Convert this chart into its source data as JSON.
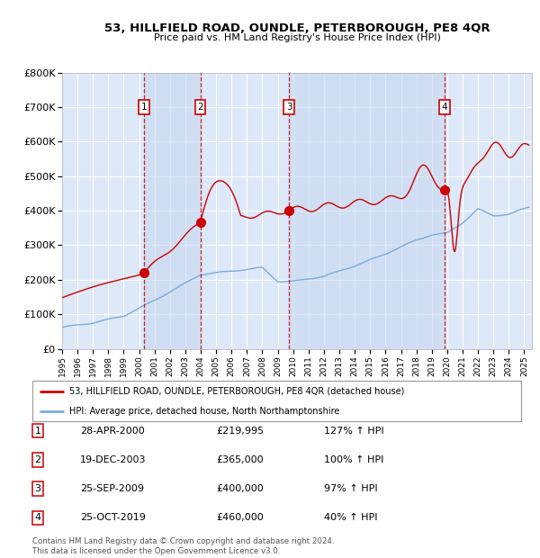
{
  "title": "53, HILLFIELD ROAD, OUNDLE, PETERBOROUGH, PE8 4QR",
  "subtitle": "Price paid vs. HM Land Registry's House Price Index (HPI)",
  "footer": "Contains HM Land Registry data © Crown copyright and database right 2024.\nThis data is licensed under the Open Government Licence v3.0.",
  "legend_red": "53, HILLFIELD ROAD, OUNDLE, PETERBOROUGH, PE8 4QR (detached house)",
  "legend_blue": "HPI: Average price, detached house, North Northamptonshire",
  "sales": [
    {
      "num": 1,
      "date": "28-APR-2000",
      "price": 219995,
      "hpi_pct": "127%",
      "direction": "↑"
    },
    {
      "num": 2,
      "date": "19-DEC-2003",
      "price": 365000,
      "hpi_pct": "100%",
      "direction": "↑"
    },
    {
      "num": 3,
      "date": "25-SEP-2009",
      "price": 400000,
      "hpi_pct": "97%",
      "direction": "↑"
    },
    {
      "num": 4,
      "date": "25-OCT-2019",
      "price": 460000,
      "hpi_pct": "40%",
      "direction": "↑"
    }
  ],
  "sale_years": [
    2000.32,
    2003.97,
    2009.73,
    2019.82
  ],
  "sale_prices": [
    219995,
    365000,
    400000,
    460000
  ],
  "vline_years": [
    2000.32,
    2003.97,
    2009.73,
    2019.82
  ],
  "shade_ranges": [
    [
      2000.32,
      2003.97
    ],
    [
      2009.73,
      2019.82
    ]
  ],
  "ylim": [
    0,
    800000
  ],
  "xlim_start": 1995.0,
  "xlim_end": 2025.5,
  "yticks": [
    0,
    100000,
    200000,
    300000,
    400000,
    500000,
    600000,
    700000,
    800000
  ],
  "ytick_labels": [
    "£0",
    "£100K",
    "£200K",
    "£300K",
    "£400K",
    "£500K",
    "£600K",
    "£700K",
    "£800K"
  ],
  "xticks": [
    1995,
    1996,
    1997,
    1998,
    1999,
    2000,
    2001,
    2002,
    2003,
    2004,
    2005,
    2006,
    2007,
    2008,
    2009,
    2010,
    2011,
    2012,
    2013,
    2014,
    2015,
    2016,
    2017,
    2018,
    2019,
    2020,
    2021,
    2022,
    2023,
    2024,
    2025
  ],
  "bg_color": "#ffffff",
  "plot_bg_color": "#dde8f8",
  "red_line_color": "#cc0000",
  "blue_line_color": "#7aabdb",
  "vline_color": "#cc0000",
  "marker_color": "#cc0000",
  "box_color": "#cc0000",
  "grid_color": "#ffffff",
  "shade_color": "#c8d8f0"
}
